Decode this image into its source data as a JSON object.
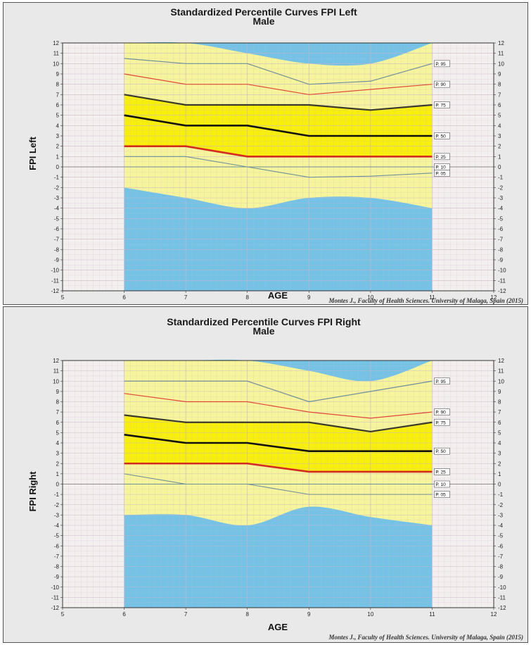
{
  "chart_data": [
    {
      "type": "line",
      "title": "Standardized Percentile Curves FPI Left",
      "subtitle": "Male",
      "xlabel": "AGE",
      "ylabel": "FPI  Left",
      "xlim": [
        5,
        12
      ],
      "ylim": [
        -12,
        12
      ],
      "x_ticks": [
        "5",
        "6",
        "7",
        "8",
        "9",
        "10",
        "11",
        "12"
      ],
      "y_ticks": [
        "12",
        "11",
        "10",
        "9",
        "8",
        "7",
        "6",
        "5",
        "4",
        "3",
        "2",
        "1",
        "0",
        "-1",
        "-2",
        "-3",
        "-4",
        "-5",
        "-6",
        "-7",
        "-8",
        "-9",
        "-10",
        "-11",
        "-12"
      ],
      "grid": true,
      "x": [
        6,
        7,
        8,
        9,
        10,
        11
      ],
      "series": [
        {
          "name": "P. 95",
          "values": [
            10.5,
            10,
            10,
            8,
            8.3,
            10
          ],
          "color": "#6f8f9b"
        },
        {
          "name": "P. 90",
          "values": [
            9,
            8,
            8,
            7,
            7.5,
            8
          ],
          "color": "#e0483c"
        },
        {
          "name": "P. 75",
          "values": [
            7,
            6,
            6,
            6,
            5.5,
            6
          ],
          "color": "#3a3a2e"
        },
        {
          "name": "P. 50",
          "values": [
            5,
            4,
            4,
            3,
            3,
            3
          ],
          "color": "#111111"
        },
        {
          "name": "P. 25",
          "values": [
            2,
            2,
            1,
            1,
            1,
            1
          ],
          "color": "#d42b1e"
        },
        {
          "name": "P. 10",
          "values": [
            1,
            1,
            0,
            0,
            0,
            0
          ],
          "color": "#6f8f9b"
        },
        {
          "name": "P. 05",
          "values": [
            0,
            0,
            0,
            -1,
            -0.9,
            -0.6
          ],
          "color": "#6f8f9b"
        }
      ],
      "upper_area": {
        "x": [
          6,
          7,
          8,
          9,
          10,
          11
        ],
        "values": [
          12,
          12,
          11,
          10,
          10,
          12
        ]
      },
      "lower_area": {
        "x": [
          6,
          7,
          8,
          9,
          10,
          11
        ],
        "values": [
          -2,
          -3,
          -4,
          -3,
          -3,
          -4
        ]
      },
      "credit": "Montes J., Faculty of Health Sciences. University of Malaga, Spain (2015)"
    },
    {
      "type": "line",
      "title": "Standardized Percentile Curves FPI Right",
      "subtitle": "Male",
      "xlabel": "AGE",
      "ylabel": "FPI  Right",
      "xlim": [
        5,
        12
      ],
      "ylim": [
        -12,
        12
      ],
      "x_ticks": [
        "5",
        "6",
        "7",
        "8",
        "9",
        "10",
        "11",
        "12"
      ],
      "y_ticks": [
        "12",
        "11",
        "10",
        "9",
        "8",
        "7",
        "6",
        "5",
        "4",
        "3",
        "2",
        "1",
        "0",
        "-1",
        "-2",
        "-3",
        "-4",
        "-5",
        "-6",
        "-7",
        "-8",
        "-9",
        "-10",
        "-11",
        "-12"
      ],
      "grid": true,
      "x": [
        6,
        7,
        8,
        9,
        10,
        11
      ],
      "series": [
        {
          "name": "P. 95",
          "values": [
            10,
            10,
            10,
            8,
            9,
            10
          ],
          "color": "#6f8f9b"
        },
        {
          "name": "P. 90",
          "values": [
            8.8,
            8,
            8,
            7,
            6.4,
            7
          ],
          "color": "#e0483c"
        },
        {
          "name": "P. 75",
          "values": [
            6.7,
            6,
            6,
            6,
            5.1,
            6
          ],
          "color": "#3a3a2e"
        },
        {
          "name": "P. 50",
          "values": [
            4.8,
            4,
            4,
            3.2,
            3.2,
            3.2
          ],
          "color": "#111111"
        },
        {
          "name": "P. 25",
          "values": [
            2,
            2,
            2,
            1.2,
            1.2,
            1.2
          ],
          "color": "#d42b1e"
        },
        {
          "name": "P. 10",
          "values": [
            1,
            0,
            0,
            0,
            0,
            0
          ],
          "color": "#6f8f9b"
        },
        {
          "name": "P. 05",
          "values": [
            0,
            0,
            0,
            -1,
            -1,
            -1
          ],
          "color": "#6f8f9b"
        }
      ],
      "upper_area": {
        "x": [
          6,
          7,
          8,
          9,
          10,
          11
        ],
        "values": [
          12,
          12,
          12,
          11,
          10,
          12
        ]
      },
      "lower_area": {
        "x": [
          6,
          7,
          8,
          9,
          10,
          11
        ],
        "values": [
          -3,
          -3,
          -4,
          -2.2,
          -3.2,
          -4
        ]
      },
      "credit": "Montes J., Faculty of Health Sciences. University of Malaga, Spain (2015)"
    }
  ],
  "colors": {
    "panel_bg": "#e9e9e9",
    "plot_bg": "#f3efef",
    "grid": "#c9b4c4",
    "band_light": "#f7f59b",
    "band_bright": "#f8f00a",
    "blue_area": "#74c3e7"
  }
}
